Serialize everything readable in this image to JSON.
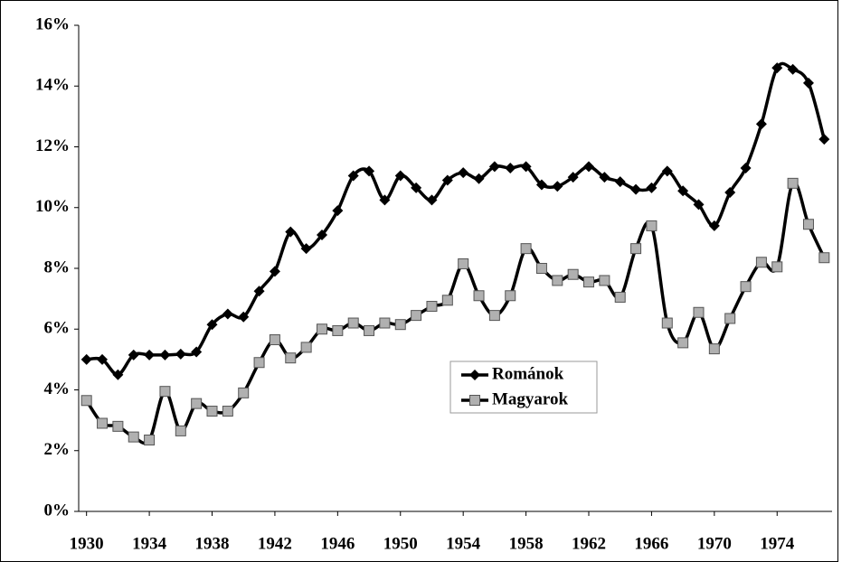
{
  "chart_data": {
    "type": "line",
    "x": [
      1930,
      1931,
      1932,
      1933,
      1934,
      1935,
      1936,
      1937,
      1938,
      1939,
      1940,
      1941,
      1942,
      1943,
      1944,
      1945,
      1946,
      1947,
      1948,
      1949,
      1950,
      1951,
      1952,
      1953,
      1954,
      1955,
      1956,
      1957,
      1958,
      1959,
      1960,
      1961,
      1962,
      1963,
      1964,
      1965,
      1966,
      1967,
      1968,
      1969,
      1970,
      1971,
      1972,
      1973,
      1974,
      1975,
      1976,
      1977
    ],
    "series": [
      {
        "name": "Románok",
        "color": "#000000",
        "marker": "diamond",
        "values": [
          5.0,
          5.0,
          4.5,
          5.15,
          5.15,
          5.15,
          5.18,
          5.25,
          6.15,
          6.5,
          6.4,
          7.25,
          7.9,
          9.2,
          8.65,
          9.1,
          9.9,
          11.05,
          11.2,
          10.25,
          11.05,
          10.65,
          10.25,
          10.9,
          11.15,
          10.95,
          11.35,
          11.3,
          11.35,
          10.75,
          10.7,
          11.0,
          11.35,
          11.0,
          10.85,
          10.6,
          10.65,
          11.2,
          10.55,
          10.1,
          9.4,
          10.5,
          11.3,
          12.75,
          14.6,
          14.55,
          14.1,
          12.25
        ]
      },
      {
        "name": "Magyarok",
        "color": "#b0b0b0",
        "marker": "square",
        "values": [
          3.65,
          2.9,
          2.8,
          2.45,
          2.35,
          3.95,
          2.65,
          3.55,
          3.3,
          3.3,
          3.9,
          4.9,
          5.65,
          5.05,
          5.4,
          6.0,
          5.95,
          6.2,
          5.95,
          6.2,
          6.15,
          6.45,
          6.75,
          6.95,
          8.15,
          7.1,
          6.45,
          7.1,
          8.65,
          8.0,
          7.6,
          7.8,
          7.55,
          7.6,
          7.05,
          8.65,
          9.4,
          6.2,
          5.55,
          6.55,
          5.35,
          6.35,
          7.4,
          8.2,
          8.05,
          10.8,
          9.45,
          8.35
        ]
      }
    ],
    "xlim": [
      1929.5,
      1977.5
    ],
    "xticks": [
      1930,
      1934,
      1938,
      1942,
      1946,
      1950,
      1954,
      1958,
      1962,
      1966,
      1970,
      1974
    ],
    "ylim": [
      0,
      16
    ],
    "yticks": [
      {
        "value": 0,
        "label": "0%"
      },
      {
        "value": 2,
        "label": "2%"
      },
      {
        "value": 4,
        "label": "4%"
      },
      {
        "value": 6,
        "label": "6%"
      },
      {
        "value": 8,
        "label": "8%"
      },
      {
        "value": 10,
        "label": "10%"
      },
      {
        "value": 12,
        "label": "12%"
      },
      {
        "value": 14,
        "label": "14%"
      },
      {
        "value": 16,
        "label": "16%"
      }
    ],
    "grid": false
  }
}
